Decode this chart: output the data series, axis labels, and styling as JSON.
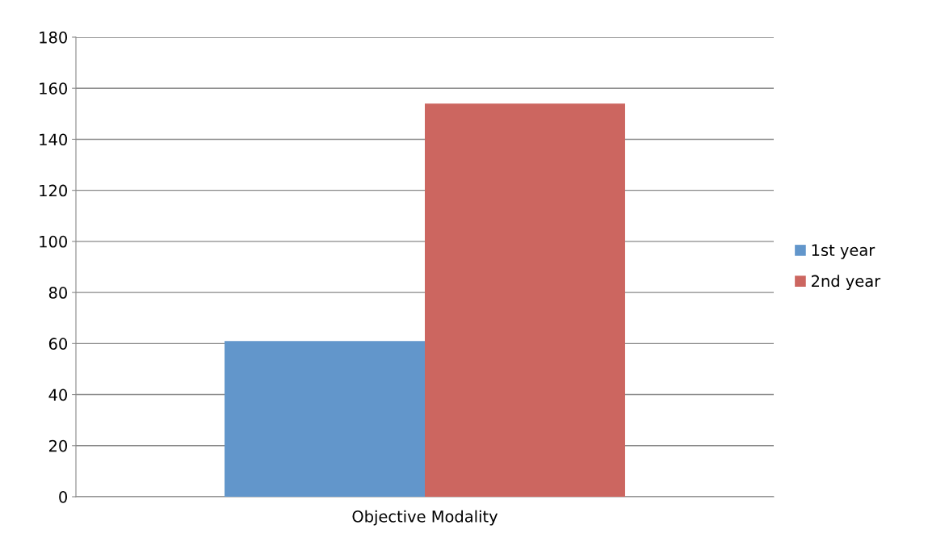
{
  "chart_data": {
    "type": "bar",
    "categories": [
      "Objective Modality"
    ],
    "series": [
      {
        "name": "1st year",
        "color": "#6296cb",
        "values": [
          61
        ]
      },
      {
        "name": "2nd year",
        "color": "#cc6660",
        "values": [
          154
        ]
      }
    ],
    "ylim": [
      0,
      180
    ],
    "yticks": [
      0,
      20,
      40,
      60,
      80,
      100,
      120,
      140,
      160,
      180
    ],
    "grid": "y",
    "legend": "right"
  }
}
